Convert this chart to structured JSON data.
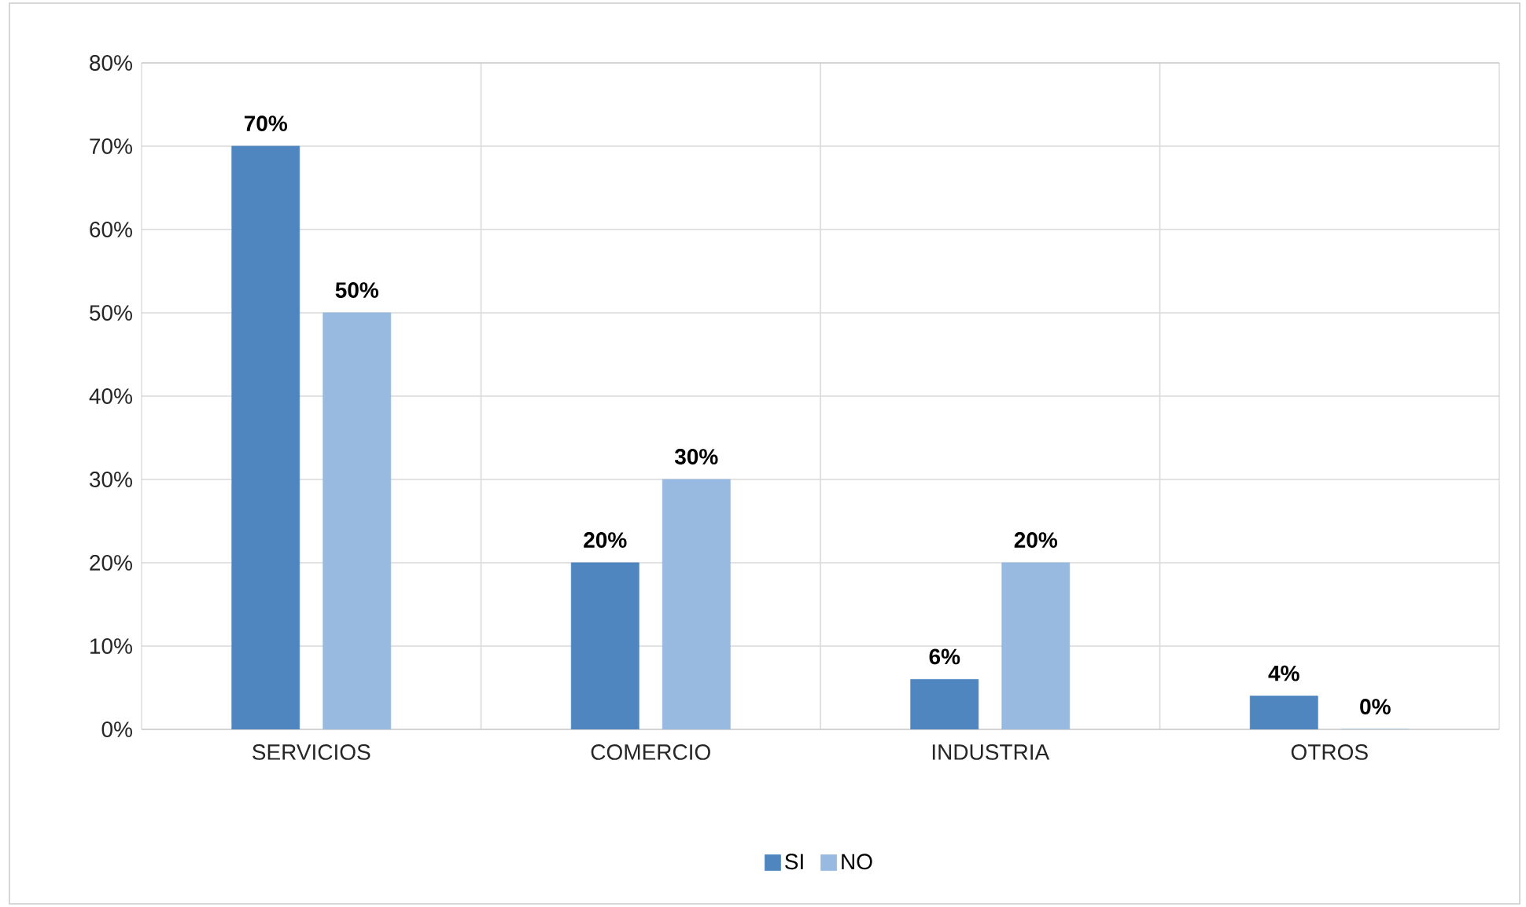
{
  "chart_data": {
    "type": "bar",
    "categories": [
      "SERVICIOS",
      "COMERCIO",
      "INDUSTRIA",
      "OTROS"
    ],
    "series": [
      {
        "name": "SI",
        "color": "#4f86c0",
        "values": [
          70,
          20,
          6,
          4
        ],
        "value_labels": [
          "70%",
          "20%",
          "6%",
          "4%"
        ]
      },
      {
        "name": "NO",
        "color": "#98b9e0",
        "values": [
          50,
          30,
          20,
          0
        ],
        "value_labels": [
          "50%",
          "30%",
          "20%",
          "0%"
        ]
      }
    ],
    "ylim": [
      0,
      80
    ],
    "yticks": [
      {
        "value": 0,
        "label": "0%"
      },
      {
        "value": 10,
        "label": "10%"
      },
      {
        "value": 20,
        "label": "20%"
      },
      {
        "value": 30,
        "label": "30%"
      },
      {
        "value": 40,
        "label": "40%"
      },
      {
        "value": 50,
        "label": "50%"
      },
      {
        "value": 60,
        "label": "60%"
      },
      {
        "value": 70,
        "label": "70%"
      },
      {
        "value": 80,
        "label": "80%"
      }
    ],
    "grid": true,
    "legend": "bottom"
  }
}
